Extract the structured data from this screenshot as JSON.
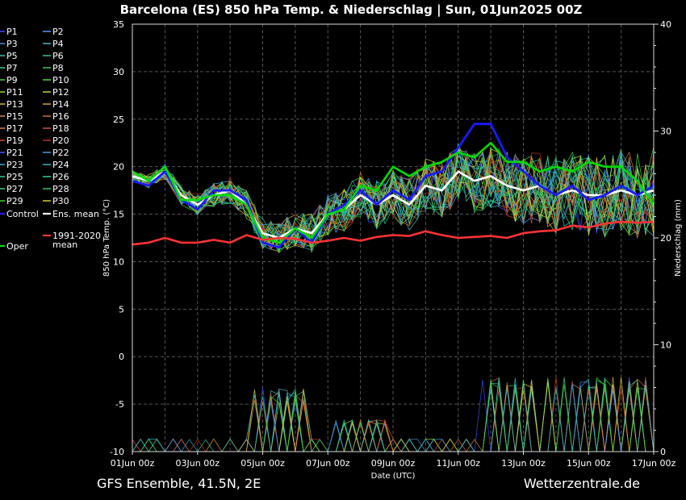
{
  "title": "Barcelona  (ES)  850 hPa Temp. & Niederschlag | Sun, 01Jun2025 00Z",
  "footer_left": "GFS Ensemble, 41.5N, 2E",
  "footer_right": "Wetterzentrale.de",
  "chart_data": {
    "type": "line",
    "xlabel": "Date (UTC)",
    "ylabel_left": "850 hPa Temp. (°C)",
    "ylabel_right": "Niederschlag (mm)",
    "xlim_days": [
      0,
      16
    ],
    "ylim_left": [
      -10,
      35
    ],
    "ylim_right": [
      0,
      40
    ],
    "grid": true,
    "legend_position": "left",
    "x_ticks": [
      "01Jun 00z",
      "03Jun 00z",
      "05Jun 00z",
      "07Jun 00z",
      "09Jun 00z",
      "11Jun 00z",
      "13Jun 00z",
      "15Jun 00z",
      "17Jun 00z"
    ],
    "x_tick_days": [
      0,
      2,
      4,
      6,
      8,
      10,
      12,
      14,
      16
    ],
    "y_ticks_left": [
      35,
      30,
      25,
      20,
      15,
      10,
      5,
      0,
      -5,
      -10
    ],
    "y_ticks_right": [
      40,
      30,
      20,
      10,
      0
    ],
    "legend": [
      {
        "label": "P1",
        "color": "#3b4cff"
      },
      {
        "label": "P2",
        "color": "#4aa3ff"
      },
      {
        "label": "P3",
        "color": "#4a8fd8"
      },
      {
        "label": "P4",
        "color": "#3fb7c8"
      },
      {
        "label": "P5",
        "color": "#2ec7b0"
      },
      {
        "label": "P6",
        "color": "#27c98a"
      },
      {
        "label": "P7",
        "color": "#2fd39a"
      },
      {
        "label": "P8",
        "color": "#3ec85a"
      },
      {
        "label": "P9",
        "color": "#44d23c"
      },
      {
        "label": "P10",
        "color": "#39e029"
      },
      {
        "label": "P11",
        "color": "#9ed82a"
      },
      {
        "label": "P12",
        "color": "#c9d22a"
      },
      {
        "label": "P13",
        "color": "#d8c03a"
      },
      {
        "label": "P14",
        "color": "#e0a02a"
      },
      {
        "label": "P15",
        "color": "#d88a4a"
      },
      {
        "label": "P16",
        "color": "#c8743a"
      },
      {
        "label": "P17",
        "color": "#e07a3a"
      },
      {
        "label": "P18",
        "color": "#d8503a"
      },
      {
        "label": "P19",
        "color": "#d84a2a"
      },
      {
        "label": "P20",
        "color": "#c0321e"
      },
      {
        "label": "P21",
        "color": "#3b5cff"
      },
      {
        "label": "P22",
        "color": "#3ea0e8"
      },
      {
        "label": "P23",
        "color": "#2fb0d8"
      },
      {
        "label": "P24",
        "color": "#2bb8c8"
      },
      {
        "label": "P25",
        "color": "#2ec8a8"
      },
      {
        "label": "P26",
        "color": "#2ed09a"
      },
      {
        "label": "P27",
        "color": "#38d080"
      },
      {
        "label": "P28",
        "color": "#30c848"
      },
      {
        "label": "P29",
        "color": "#40d830"
      },
      {
        "label": "P30",
        "color": "#d8d02a"
      },
      {
        "label": "Control",
        "color": "#1a1aff"
      },
      {
        "label": "Ens. mean",
        "color": "#ffffff"
      },
      {
        "label": "Oper",
        "color": "#00dd00"
      },
      {
        "label": "1991-2020\nmean",
        "color": "#ff3333"
      }
    ],
    "series": [
      {
        "name": "Ens. mean",
        "color": "#ffffff",
        "days": [
          0,
          0.5,
          1,
          1.5,
          2,
          2.5,
          3,
          3.5,
          4,
          4.5,
          5,
          5.5,
          6,
          6.5,
          7,
          7.5,
          8,
          8.5,
          9,
          9.5,
          10,
          10.5,
          11,
          11.5,
          12,
          12.5,
          13,
          13.5,
          14,
          14.5,
          15,
          15.5,
          16
        ],
        "values": [
          19,
          18.5,
          19.5,
          17,
          16,
          17,
          17.5,
          16,
          13,
          12.5,
          13.5,
          13,
          15,
          15.5,
          17,
          16,
          17,
          16,
          18,
          17.5,
          19.5,
          18.5,
          19,
          18,
          17.5,
          18,
          17,
          17.5,
          17,
          17,
          17.5,
          17,
          17.5
        ]
      },
      {
        "name": "Control",
        "color": "#1a1aff",
        "days": [
          0,
          0.5,
          1,
          1.5,
          2,
          2.5,
          3,
          3.5,
          4,
          4.5,
          5,
          5.5,
          6,
          6.5,
          7,
          7.5,
          8,
          8.5,
          9,
          9.5,
          10,
          10.5,
          11,
          11.5,
          12,
          12.5,
          13,
          13.5,
          14,
          14.5,
          15,
          15.5,
          16
        ],
        "values": [
          18.5,
          18,
          19.5,
          16.5,
          15.5,
          17.5,
          17.5,
          16.5,
          12,
          11.5,
          13.5,
          12,
          15,
          16,
          17.5,
          16,
          17.5,
          16.5,
          19,
          19.5,
          22,
          24.5,
          24.5,
          21,
          19.5,
          18,
          17,
          18,
          16.5,
          17,
          18,
          17,
          18
        ]
      },
      {
        "name": "Oper",
        "color": "#00dd00",
        "days": [
          0,
          0.5,
          1,
          1.5,
          2,
          2.5,
          3,
          3.5,
          4,
          4.5,
          5,
          5.5,
          6,
          6.5,
          7,
          7.5,
          8,
          8.5,
          9,
          9.5,
          10,
          10.5,
          11,
          11.5,
          12,
          12.5,
          13,
          13.5,
          14,
          14.5,
          15,
          15.5,
          16
        ],
        "values": [
          19.5,
          18.5,
          20,
          16.5,
          16.5,
          17,
          17,
          16,
          12.5,
          12,
          13.5,
          12.5,
          15,
          15.5,
          18,
          17.5,
          20,
          19,
          20,
          20.5,
          21.5,
          21,
          22.5,
          20.5,
          20.5,
          19.5,
          20,
          19.5,
          20.5,
          20,
          20,
          18.5,
          16
        ]
      },
      {
        "name": "1991-2020 mean",
        "color": "#ff3333",
        "days": [
          0,
          0.5,
          1,
          1.5,
          2,
          2.5,
          3,
          3.5,
          4,
          4.5,
          5,
          5.5,
          6,
          6.5,
          7,
          7.5,
          8,
          8.5,
          9,
          9.5,
          10,
          10.5,
          11,
          11.5,
          12,
          12.5,
          13,
          13.5,
          14,
          14.5,
          15,
          15.5,
          16
        ],
        "values": [
          11.8,
          12,
          12.5,
          12,
          12,
          12.3,
          12,
          12.8,
          12.3,
          12.5,
          12.4,
          12,
          12.2,
          12.5,
          12.2,
          12.6,
          12.8,
          12.7,
          13.2,
          12.8,
          12.5,
          12.6,
          12.7,
          12.5,
          13,
          13.2,
          13.3,
          13.8,
          13.6,
          14,
          14.2,
          14.1,
          14.2
        ]
      }
    ]
  }
}
